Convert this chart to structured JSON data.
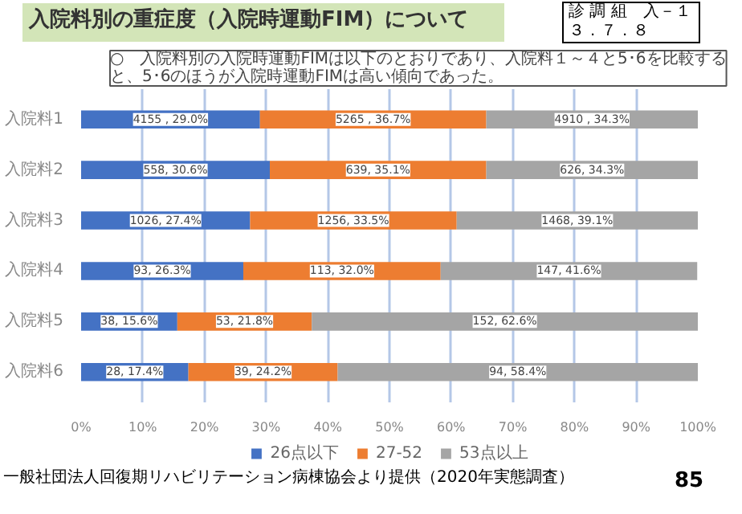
{
  "chart_data": {
    "type": "bar",
    "orientation": "horizontal",
    "stacked": true,
    "title": "入院料別の重症度（入院時運動FIM）について",
    "subtitle": "○　入院料別の入院時運動FIMは以下のとおりであり、入院料１～４と5･6を比較すると、5･6のほうが入院時運動FIMは高い傾向であった。",
    "categories": [
      "入院料1",
      "入院料2",
      "入院料3",
      "入院料4",
      "入院料5",
      "入院料6"
    ],
    "series": [
      {
        "name": "26点以下",
        "color": "#4472c4",
        "values": [
          29.0,
          30.6,
          27.4,
          26.3,
          15.6,
          17.4
        ],
        "value_labels": [
          "4155 , 29.0%",
          "558, 30.6%",
          "1026, 27.4%",
          "93, 26.3%",
          "38, 15.6%",
          "28, 17.4%"
        ]
      },
      {
        "name": "27-52",
        "color": "#ed7d31",
        "values": [
          36.7,
          35.1,
          33.5,
          32.0,
          21.8,
          24.2
        ],
        "value_labels": [
          "5265 , 36.7%",
          "639, 35.1%",
          "1256, 33.5%",
          "113, 32.0%",
          "53, 21.8%",
          "39, 24.2%"
        ]
      },
      {
        "name": "53点以上",
        "color": "#a5a5a5",
        "values": [
          34.3,
          34.3,
          39.1,
          41.6,
          62.6,
          58.4
        ],
        "value_labels": [
          "4910 , 34.3%",
          "626, 34.3%",
          "1468, 39.1%",
          "147, 41.6%",
          "152, 62.6%",
          "94, 58.4%"
        ]
      }
    ],
    "xlim": [
      0,
      100
    ],
    "xticks": [
      {
        "value": 0,
        "label": "0%"
      },
      {
        "value": 10,
        "label": "10%"
      },
      {
        "value": 20,
        "label": "20%"
      },
      {
        "value": 30,
        "label": "30%"
      },
      {
        "value": 40,
        "label": "40%"
      },
      {
        "value": 50,
        "label": "50%"
      },
      {
        "value": 60,
        "label": "60%"
      },
      {
        "value": 70,
        "label": "70%"
      },
      {
        "value": 80,
        "label": "80%"
      },
      {
        "value": 90,
        "label": "90%"
      },
      {
        "value": 100,
        "label": "100%"
      }
    ],
    "grid": "x",
    "legend": "bottom",
    "annotations": [
      "診 調 組　入－１",
      "３．７．８",
      "一般社団法人回復期リハビリテーション病棟協会より提供（2020年実態調査）",
      "85"
    ]
  }
}
